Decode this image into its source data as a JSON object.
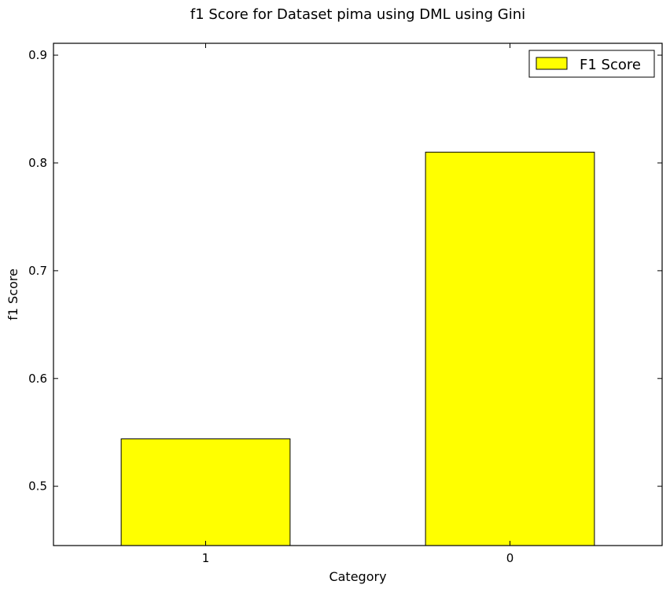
{
  "chart_data": {
    "type": "bar",
    "title": "f1 Score for Dataset pima using DML using Gini",
    "xlabel": "Category",
    "ylabel": "f1 Score",
    "categories": [
      "1",
      "0"
    ],
    "series": [
      {
        "name": "F1 Score",
        "values": [
          0.544,
          0.81
        ]
      }
    ],
    "ylim": [
      0.445,
      0.911
    ],
    "yticks": [
      "0.5",
      "0.6",
      "0.7",
      "0.8",
      "0.9"
    ],
    "grid": false,
    "legend": "top-right",
    "colors": {
      "bar": "#ffff00",
      "edge": "#000000"
    }
  }
}
